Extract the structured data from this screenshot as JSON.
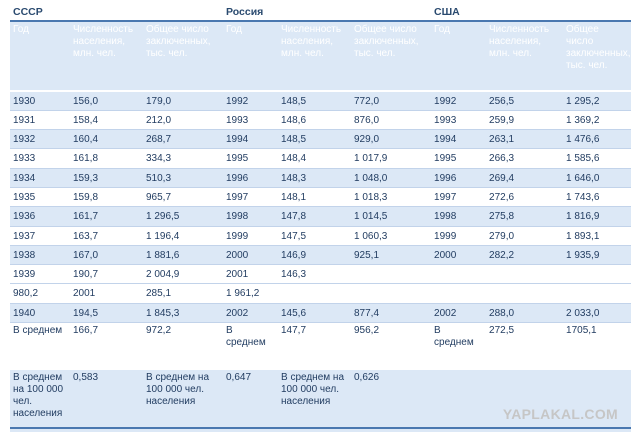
{
  "groups": [
    "СССР",
    "Россия",
    "США"
  ],
  "headers": [
    "Год",
    "Численность населения, млн. чел.",
    "Общее число заключенных, тыс. чел.",
    "Год",
    "Численность населения, млн. чел.",
    "Общее число заключенных, тыс. чел.",
    "Год",
    "Численность населения, млн. чел.",
    "Общее число заключенных, тыс. чел."
  ],
  "rows": [
    [
      "1930",
      "156,0",
      "179,0",
      "1992",
      "148,5",
      "772,0",
      "1992",
      "256,5",
      "1 295,2"
    ],
    [
      "1931",
      "158,4",
      "212,0",
      "1993",
      "148,6",
      "876,0",
      "1993",
      "259,9",
      "1 369,2"
    ],
    [
      "1932",
      "160,4",
      "268,7",
      "1994",
      "148,5",
      "929,0",
      "1994",
      "263,1",
      "1 476,6"
    ],
    [
      "1933",
      "161,8",
      "334,3",
      "1995",
      "148,4",
      "1 017,9",
      "1995",
      "266,3",
      "1 585,6"
    ],
    [
      "1934",
      "159,3",
      "510,3",
      "1996",
      "148,3",
      "1 048,0",
      "1996",
      "269,4",
      "1 646,0"
    ],
    [
      "1935",
      "159,8",
      "965,7",
      "1997",
      "148,1",
      "1 018,3",
      "1997",
      "272,6",
      "1 743,6"
    ],
    [
      "1936",
      "161,7",
      "1 296,5",
      "1998",
      "147,8",
      "1 014,5",
      "1998",
      "275,8",
      "1 816,9"
    ],
    [
      "1937",
      "163,7",
      "1 196,4",
      "1999",
      "147,5",
      "1 060,3",
      "1999",
      "279,0",
      "1 893,1"
    ],
    [
      "1938",
      "167,0",
      "1 881,6",
      "2000",
      "146,9",
      "925,1",
      "2000",
      "282,2",
      "1 935,9"
    ],
    [
      "1939",
      "190,7",
      "2 004,9",
      "2001",
      "146,3",
      "",
      "",
      "",
      ""
    ]
  ],
  "extra_row": [
    "980,2",
    "2001",
    "285,1",
    "1 961,2",
    "",
    "",
    "",
    "",
    ""
  ],
  "row_1940": [
    "1940",
    "194,5",
    "1 845,3",
    "2002",
    "145,6",
    "877,4",
    "2002",
    "288,0",
    "2 033,0"
  ],
  "avg_row": [
    "В среднем",
    "166,7",
    "972,2",
    "В среднем",
    "147,7",
    "956,2",
    "В среднем",
    "272,5",
    "1705,1"
  ],
  "per100k_row": [
    "В среднем на 100 000 чел. населения",
    "0,583",
    "В среднем на 100 000 чел. населения",
    "0,647",
    "В среднем на 100 000 чел. населения",
    "0,626",
    "",
    "",
    ""
  ],
  "watermark": "YAPLAKAL.COM"
}
